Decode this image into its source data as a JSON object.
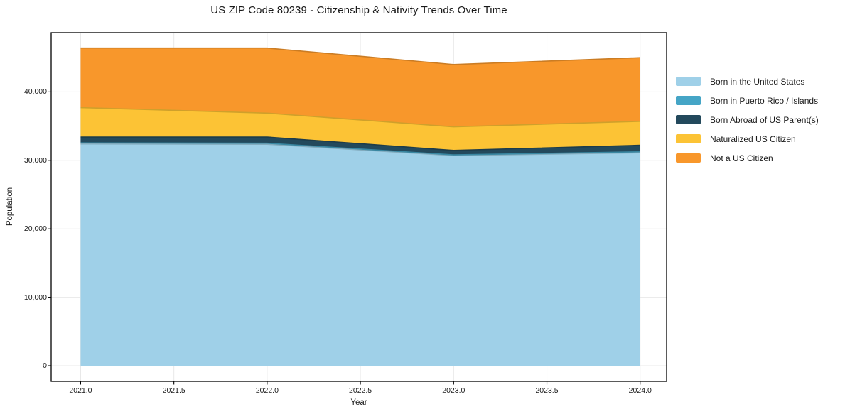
{
  "figure": {
    "title": "US ZIP Code 80239 - Citizenship & Nativity Trends Over Time",
    "background_color": "#ffffff",
    "text_color": "#1a1a1a",
    "grid_color": "#e8e8e8",
    "spine_color": "#000000"
  },
  "chart_data": {
    "type": "area",
    "stacked": true,
    "title": "US ZIP Code 80239 - Citizenship & Nativity Trends Over Time",
    "xlabel": "Year",
    "ylabel": "Population",
    "grid": true,
    "legend_position": "outside-right",
    "x": [
      2021,
      2022,
      2023,
      2024
    ],
    "series": [
      {
        "name": "Born in the United States",
        "color": "#9fd0e8",
        "values": [
          32400,
          32350,
          30700,
          31100
        ]
      },
      {
        "name": "Born in Puerto Rico / Islands",
        "color": "#45a5c6",
        "values": [
          150,
          150,
          100,
          150
        ]
      },
      {
        "name": "Born Abroad of US Parent(s)",
        "color": "#23495c",
        "values": [
          850,
          900,
          650,
          950
        ]
      },
      {
        "name": "Naturalized US Citizen",
        "color": "#fcc335",
        "values": [
          4300,
          3500,
          3450,
          3500
        ]
      },
      {
        "name": "Not a US Citizen",
        "color": "#f8972b",
        "values": [
          8700,
          9500,
          9100,
          9300
        ]
      }
    ],
    "totals": [
      46400,
      46400,
      44000,
      45000
    ],
    "xlim": [
      2020.842,
      2024.142
    ],
    "ylim": [
      -2280,
      48650
    ],
    "x_tick_values": [
      2021.0,
      2021.5,
      2022.0,
      2022.5,
      2023.0,
      2023.5,
      2024.0
    ],
    "x_tick_labels": [
      "2021.0",
      "2021.5",
      "2022.0",
      "2022.5",
      "2023.0",
      "2023.5",
      "2024.0"
    ],
    "y_tick_values": [
      0,
      10000,
      20000,
      30000,
      40000
    ],
    "y_tick_labels": [
      "0",
      "10,000",
      "20,000",
      "30,000",
      "40,000"
    ]
  }
}
